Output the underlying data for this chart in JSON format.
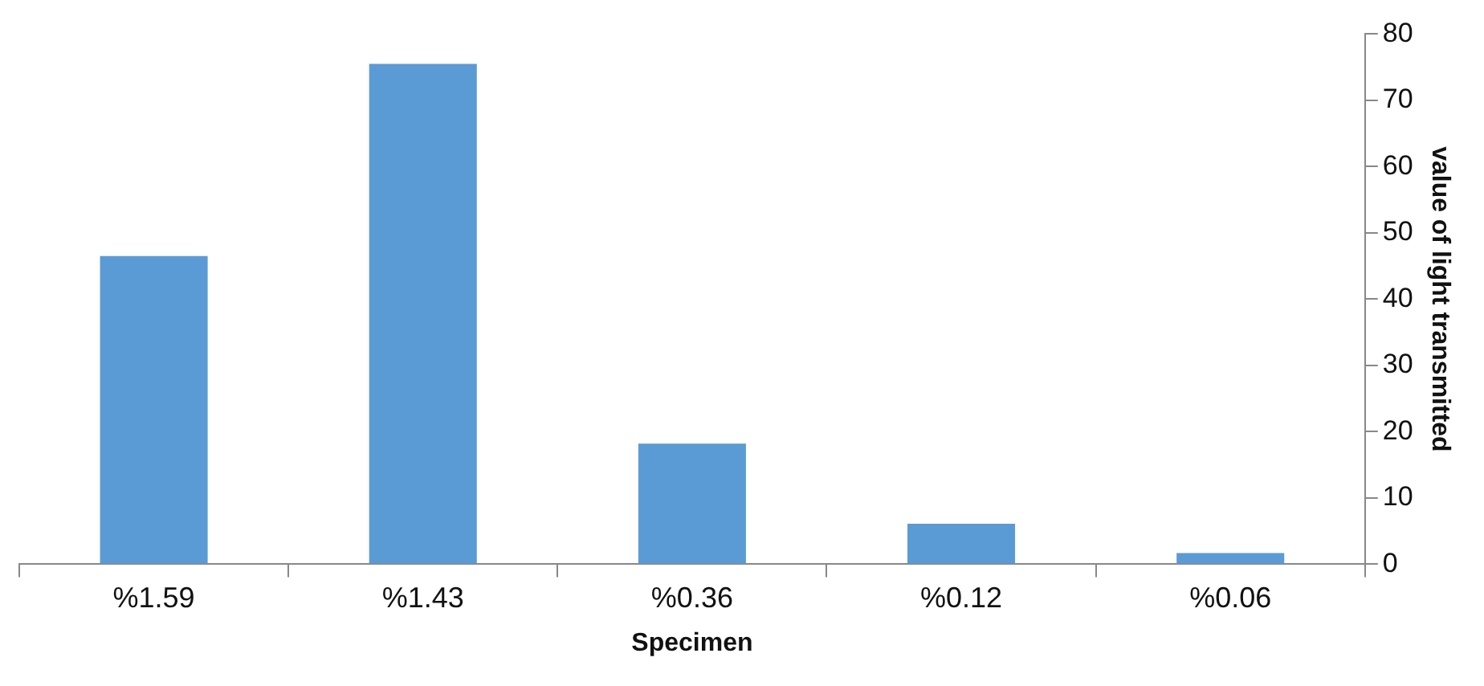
{
  "chart_data": {
    "type": "bar",
    "xlabel": "Specimen",
    "ylabel": "value of light transmitted",
    "categories": [
      "%1.59",
      "%1.43",
      "%0.36",
      "%0.12",
      "%0.06"
    ],
    "values": [
      46.5,
      75.5,
      18.2,
      6.1,
      1.7
    ],
    "color": "#5b9bd5",
    "ylim": [
      0,
      80
    ],
    "yticks": [
      0,
      10,
      20,
      30,
      40,
      50,
      60,
      70,
      80
    ]
  }
}
